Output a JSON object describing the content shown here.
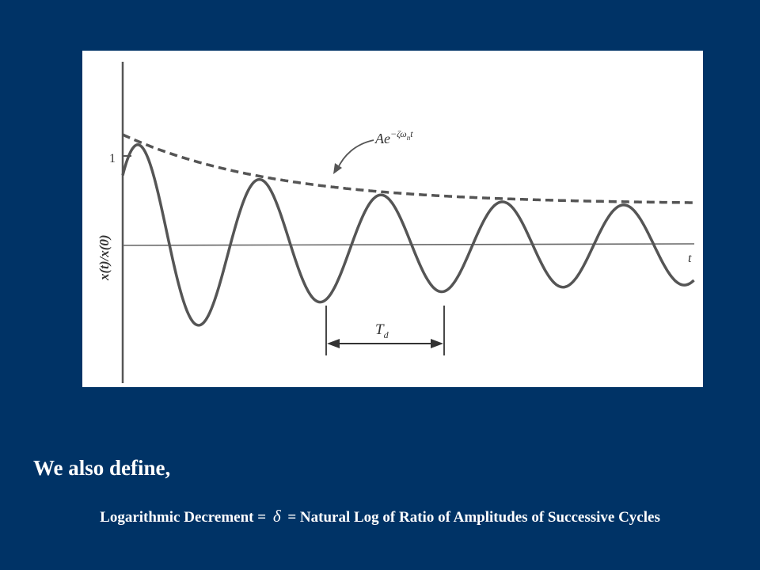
{
  "figure": {
    "y_axis_label": "x(t)/x(0)",
    "y_tick_one": "1",
    "x_axis_label": "t",
    "envelope_label": {
      "base": "Ae",
      "exponent": "−ζω",
      "exponent_sub": "n",
      "exponent_tail": "t"
    },
    "period_label": {
      "symbol": "T",
      "sub": "d"
    }
  },
  "text": {
    "lead": "We also define,",
    "definition_prefix": "Logarithmic Decrement =",
    "definition_symbol": "δ",
    "definition_suffix": "= Natural Log of Ratio of Amplitudes of Successive Cycles"
  },
  "colors": {
    "background": "#003366",
    "panel": "#ffffff",
    "ink": "#555555",
    "text": "#ffffff"
  }
}
